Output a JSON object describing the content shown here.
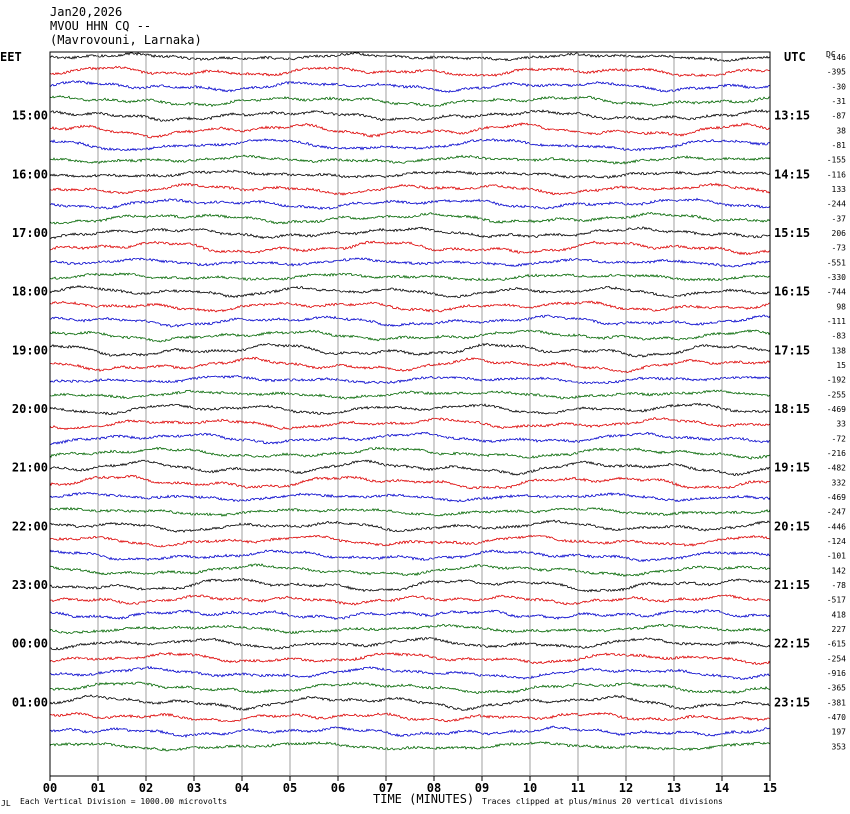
{
  "header": {
    "date": "Jan20,2026",
    "station": "MVOU HHN CQ --",
    "location": "(Mavrovouni, Larnaka)"
  },
  "left_tz": "EET",
  "right_tz": "UTC",
  "dc_label": "DC",
  "footer": {
    "mark": "JL",
    "scale": "Each Vertical Division = 1000.00 microvolts",
    "xlabel": "TIME (MINUTES)",
    "clip": "Traces clipped at plus/minus 20 vertical divisions"
  },
  "colors": {
    "cycle": [
      "#000000",
      "#dd0000",
      "#0000cc",
      "#006600"
    ],
    "grid": "#888888"
  },
  "chart_data": {
    "type": "line",
    "title": "MVOU HHN CQ --",
    "xlabel": "TIME (MINUTES)",
    "ylabel": "",
    "xlim": [
      0,
      15
    ],
    "x_ticks": [
      "00",
      "01",
      "02",
      "03",
      "04",
      "05",
      "06",
      "07",
      "08",
      "09",
      "10",
      "11",
      "12",
      "13",
      "14",
      "15"
    ],
    "left_time_labels": [
      "15:00",
      "16:00",
      "17:00",
      "18:00",
      "19:00",
      "20:00",
      "21:00",
      "22:00",
      "23:00",
      "00:00",
      "01:00"
    ],
    "right_time_labels": [
      "13:15",
      "14:15",
      "15:15",
      "16:15",
      "17:15",
      "18:15",
      "19:15",
      "20:15",
      "21:15",
      "22:15",
      "23:15"
    ],
    "dc_offsets": [
      "-146",
      "-395",
      "-30",
      "-31",
      "-87",
      "38",
      "-81",
      "-155",
      "-116",
      "133",
      "-244",
      "-37",
      "206",
      "-73",
      "-551",
      "-330",
      "-744",
      "98",
      "-111",
      "-83",
      "138",
      "15",
      "-192",
      "-255",
      "-469",
      "33",
      "-72",
      "-216",
      "-482",
      "332",
      "-469",
      "-247",
      "-446",
      "-124",
      "-101",
      "142",
      "-78",
      "-517",
      "418",
      "227",
      "-615",
      "-254",
      "-916",
      "-365",
      "-381",
      "-470",
      "197",
      "353"
    ],
    "traces_per_hour": 4,
    "grid": true
  }
}
